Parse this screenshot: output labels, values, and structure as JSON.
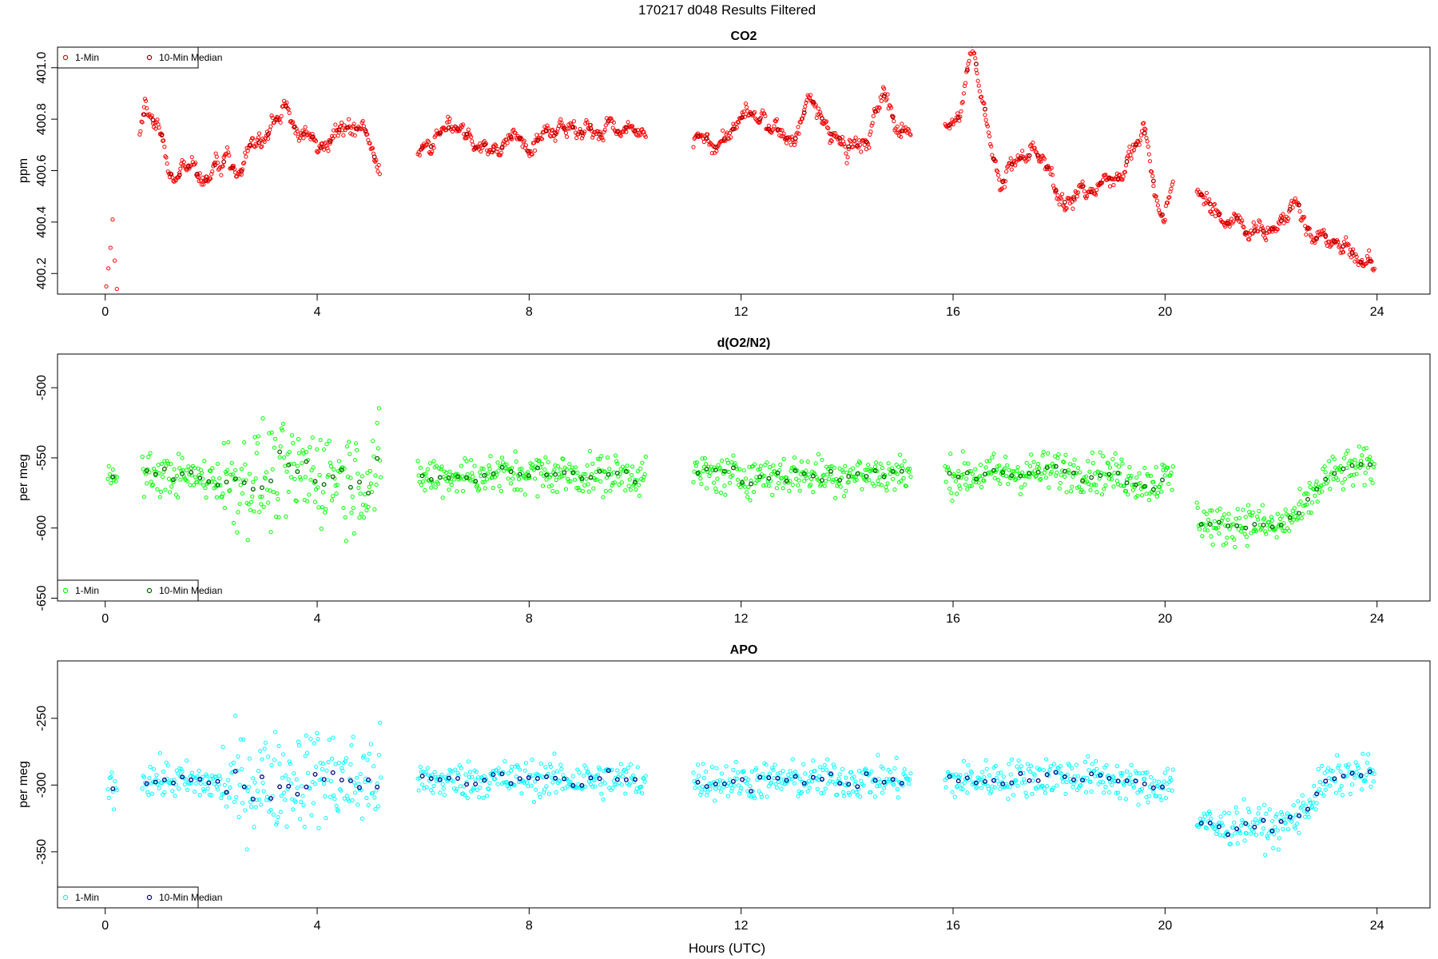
{
  "figure": {
    "title": "170217   d048   Results Filtered",
    "xlabel": "Hours (UTC)"
  },
  "chart_data": [
    {
      "type": "scatter",
      "title": "CO2",
      "ylabel": "ppm",
      "xlim": [
        -0.9,
        25.0
      ],
      "ylim": [
        400.12,
        401.08
      ],
      "xticks": [
        0,
        4,
        8,
        12,
        16,
        20,
        24
      ],
      "yticks": [
        400.2,
        400.4,
        400.6,
        400.8,
        401.0
      ],
      "ytick_labels": [
        "400.2",
        "400.4",
        "400.6",
        "400.8",
        "401.0"
      ],
      "legend": {
        "location": "top-left",
        "entries": [
          "1-Min",
          "10-Min Median"
        ]
      },
      "colors": {
        "one_min": "#ff0000",
        "median": "#990000"
      },
      "series": [
        {
          "name": "1-Min",
          "segments": [
            {
              "x_start": 0.02,
              "x_end": 0.22,
              "points": [
                400.15,
                400.22,
                400.3,
                400.41,
                400.25,
                400.14
              ]
            },
            {
              "x_start": 0.65,
              "x_end": 5.18,
              "anchors": [
                [
                  0.65,
                  400.74
                ],
                [
                  0.75,
                  400.86
                ],
                [
                  0.9,
                  400.79
                ],
                [
                  1.1,
                  400.74
                ],
                [
                  1.2,
                  400.58
                ],
                [
                  1.5,
                  400.62
                ],
                [
                  1.9,
                  400.6
                ],
                [
                  2.3,
                  400.66
                ],
                [
                  2.8,
                  400.67
                ],
                [
                  3.1,
                  400.73
                ],
                [
                  3.4,
                  400.83
                ],
                [
                  3.7,
                  400.75
                ],
                [
                  4.0,
                  400.72
                ],
                [
                  4.3,
                  400.76
                ],
                [
                  4.7,
                  400.8
                ],
                [
                  5.0,
                  400.72
                ],
                [
                  5.18,
                  400.65
                ]
              ]
            },
            {
              "x_start": 5.9,
              "x_end": 10.2,
              "anchors": [
                [
                  5.9,
                  400.67
                ],
                [
                  6.4,
                  400.72
                ],
                [
                  6.8,
                  400.76
                ],
                [
                  7.3,
                  400.68
                ],
                [
                  7.8,
                  400.72
                ],
                [
                  8.2,
                  400.77
                ],
                [
                  8.6,
                  400.79
                ],
                [
                  9.0,
                  400.75
                ],
                [
                  9.5,
                  400.77
                ],
                [
                  10.0,
                  400.74
                ],
                [
                  10.2,
                  400.72
                ]
              ]
            },
            {
              "x_start": 11.1,
              "x_end": 15.2,
              "anchors": [
                [
                  11.1,
                  400.72
                ],
                [
                  11.5,
                  400.7
                ],
                [
                  12.1,
                  400.82
                ],
                [
                  12.6,
                  400.76
                ],
                [
                  13.0,
                  400.72
                ],
                [
                  13.3,
                  400.88
                ],
                [
                  13.6,
                  400.76
                ],
                [
                  14.0,
                  400.68
                ],
                [
                  14.4,
                  400.72
                ],
                [
                  14.7,
                  400.9
                ],
                [
                  15.0,
                  400.74
                ],
                [
                  15.2,
                  400.8
                ]
              ]
            },
            {
              "x_start": 15.85,
              "x_end": 20.15,
              "anchors": [
                [
                  15.85,
                  400.78
                ],
                [
                  16.1,
                  400.8
                ],
                [
                  16.35,
                  401.04
                ],
                [
                  16.6,
                  400.83
                ],
                [
                  16.9,
                  400.56
                ],
                [
                  17.3,
                  400.66
                ],
                [
                  17.7,
                  400.62
                ],
                [
                  18.0,
                  400.52
                ],
                [
                  18.5,
                  400.5
                ],
                [
                  18.9,
                  400.57
                ],
                [
                  19.3,
                  400.64
                ],
                [
                  19.6,
                  400.78
                ],
                [
                  19.8,
                  400.5
                ],
                [
                  20.0,
                  400.4
                ],
                [
                  20.15,
                  400.56
                ]
              ]
            },
            {
              "x_start": 20.6,
              "x_end": 23.95,
              "anchors": [
                [
                  20.6,
                  400.53
                ],
                [
                  21.0,
                  400.42
                ],
                [
                  21.5,
                  400.4
                ],
                [
                  22.0,
                  400.38
                ],
                [
                  22.4,
                  400.45
                ],
                [
                  22.8,
                  400.33
                ],
                [
                  23.3,
                  400.3
                ],
                [
                  23.7,
                  400.24
                ],
                [
                  23.95,
                  400.25
                ]
              ]
            }
          ]
        }
      ]
    },
    {
      "type": "scatter",
      "title": "d(O2/N2)",
      "ylabel": "per meg",
      "xlim": [
        -0.9,
        25.0
      ],
      "ylim": [
        -652,
        -476
      ],
      "xticks": [
        0,
        4,
        8,
        12,
        16,
        20,
        24
      ],
      "yticks": [
        -650,
        -600,
        -550,
        -500
      ],
      "ytick_labels": [
        "-650",
        "-600",
        "-550",
        "-500"
      ],
      "legend": {
        "location": "bottom-left",
        "entries": [
          "1-Min",
          "10-Min Median"
        ]
      },
      "colors": {
        "one_min": "#00ff00",
        "median": "#006400"
      },
      "series": [
        {
          "name": "1-Min",
          "segments": [
            {
              "x_start": 0.05,
              "x_end": 0.22,
              "anchors": [
                [
                  0.05,
                  -566
                ],
                [
                  0.22,
                  -564
                ]
              ]
            },
            {
              "x_start": 0.7,
              "x_end": 5.2,
              "anchors": [
                [
                  0.7,
                  -562
                ],
                [
                  1.5,
                  -563
                ],
                [
                  2.3,
                  -566
                ],
                [
                  3.0,
                  -565
                ],
                [
                  4.0,
                  -560
                ],
                [
                  4.8,
                  -565
                ],
                [
                  5.2,
                  -560
                ]
              ]
            },
            {
              "x_start": 5.9,
              "x_end": 10.2,
              "anchors": [
                [
                  5.9,
                  -564
                ],
                [
                  7.0,
                  -562
                ],
                [
                  8.0,
                  -561
                ],
                [
                  9.0,
                  -562
                ],
                [
                  10.2,
                  -562
                ]
              ]
            },
            {
              "x_start": 11.1,
              "x_end": 15.2,
              "anchors": [
                [
                  11.1,
                  -561
                ],
                [
                  12.0,
                  -563
                ],
                [
                  13.0,
                  -562
                ],
                [
                  14.0,
                  -562
                ],
                [
                  15.2,
                  -561
                ]
              ]
            },
            {
              "x_start": 15.85,
              "x_end": 20.15,
              "anchors": [
                [
                  15.85,
                  -563
                ],
                [
                  17.0,
                  -561
                ],
                [
                  18.0,
                  -559
                ],
                [
                  19.0,
                  -561
                ],
                [
                  19.7,
                  -568
                ],
                [
                  20.15,
                  -563
                ]
              ]
            },
            {
              "x_start": 20.6,
              "x_end": 23.95,
              "anchors": [
                [
                  20.6,
                  -592
                ],
                [
                  21.0,
                  -600
                ],
                [
                  21.5,
                  -595
                ],
                [
                  22.1,
                  -600
                ],
                [
                  22.6,
                  -588
                ],
                [
                  23.0,
                  -565
                ],
                [
                  23.5,
                  -558
                ],
                [
                  23.95,
                  -556
                ]
              ]
            }
          ]
        }
      ]
    },
    {
      "type": "scatter",
      "title": "APO",
      "ylabel": "per meg",
      "xlim": [
        -0.9,
        25.0
      ],
      "ylim": [
        -392,
        -207
      ],
      "xticks": [
        0,
        4,
        8,
        12,
        16,
        20,
        24
      ],
      "yticks": [
        -350,
        -300,
        -250
      ],
      "ytick_labels": [
        "-350",
        "-300",
        "-250"
      ],
      "legend": {
        "location": "bottom-left",
        "entries": [
          "1-Min",
          "10-Min Median"
        ]
      },
      "colors": {
        "one_min": "#00ffff",
        "median": "#000080"
      },
      "series": [
        {
          "name": "1-Min",
          "segments": [
            {
              "x_start": 0.05,
              "x_end": 0.22,
              "anchors": [
                [
                  0.05,
                  -302
                ],
                [
                  0.22,
                  -300
                ]
              ]
            },
            {
              "x_start": 0.7,
              "x_end": 5.2,
              "anchors": [
                [
                  0.7,
                  -295
                ],
                [
                  1.5,
                  -297
                ],
                [
                  2.3,
                  -300
                ],
                [
                  3.0,
                  -298
                ],
                [
                  4.0,
                  -293
                ],
                [
                  4.8,
                  -298
                ],
                [
                  5.2,
                  -293
                ]
              ]
            },
            {
              "x_start": 5.9,
              "x_end": 10.2,
              "anchors": [
                [
                  5.9,
                  -297
                ],
                [
                  7.0,
                  -296
                ],
                [
                  8.0,
                  -295
                ],
                [
                  9.0,
                  -296
                ],
                [
                  10.2,
                  -296
                ]
              ]
            },
            {
              "x_start": 11.1,
              "x_end": 15.2,
              "anchors": [
                [
                  11.1,
                  -296
                ],
                [
                  12.0,
                  -297
                ],
                [
                  13.0,
                  -296
                ],
                [
                  14.0,
                  -296
                ],
                [
                  15.2,
                  -296
                ]
              ]
            },
            {
              "x_start": 15.85,
              "x_end": 20.15,
              "anchors": [
                [
                  15.85,
                  -297
                ],
                [
                  17.0,
                  -295
                ],
                [
                  18.0,
                  -293
                ],
                [
                  19.0,
                  -295
                ],
                [
                  19.7,
                  -302
                ],
                [
                  20.15,
                  -297
                ]
              ]
            },
            {
              "x_start": 20.6,
              "x_end": 23.95,
              "anchors": [
                [
                  20.6,
                  -325
                ],
                [
                  21.0,
                  -333
                ],
                [
                  21.5,
                  -328
                ],
                [
                  22.1,
                  -333
                ],
                [
                  22.6,
                  -320
                ],
                [
                  23.0,
                  -298
                ],
                [
                  23.5,
                  -292
                ],
                [
                  23.95,
                  -292
                ]
              ]
            }
          ]
        }
      ]
    }
  ]
}
